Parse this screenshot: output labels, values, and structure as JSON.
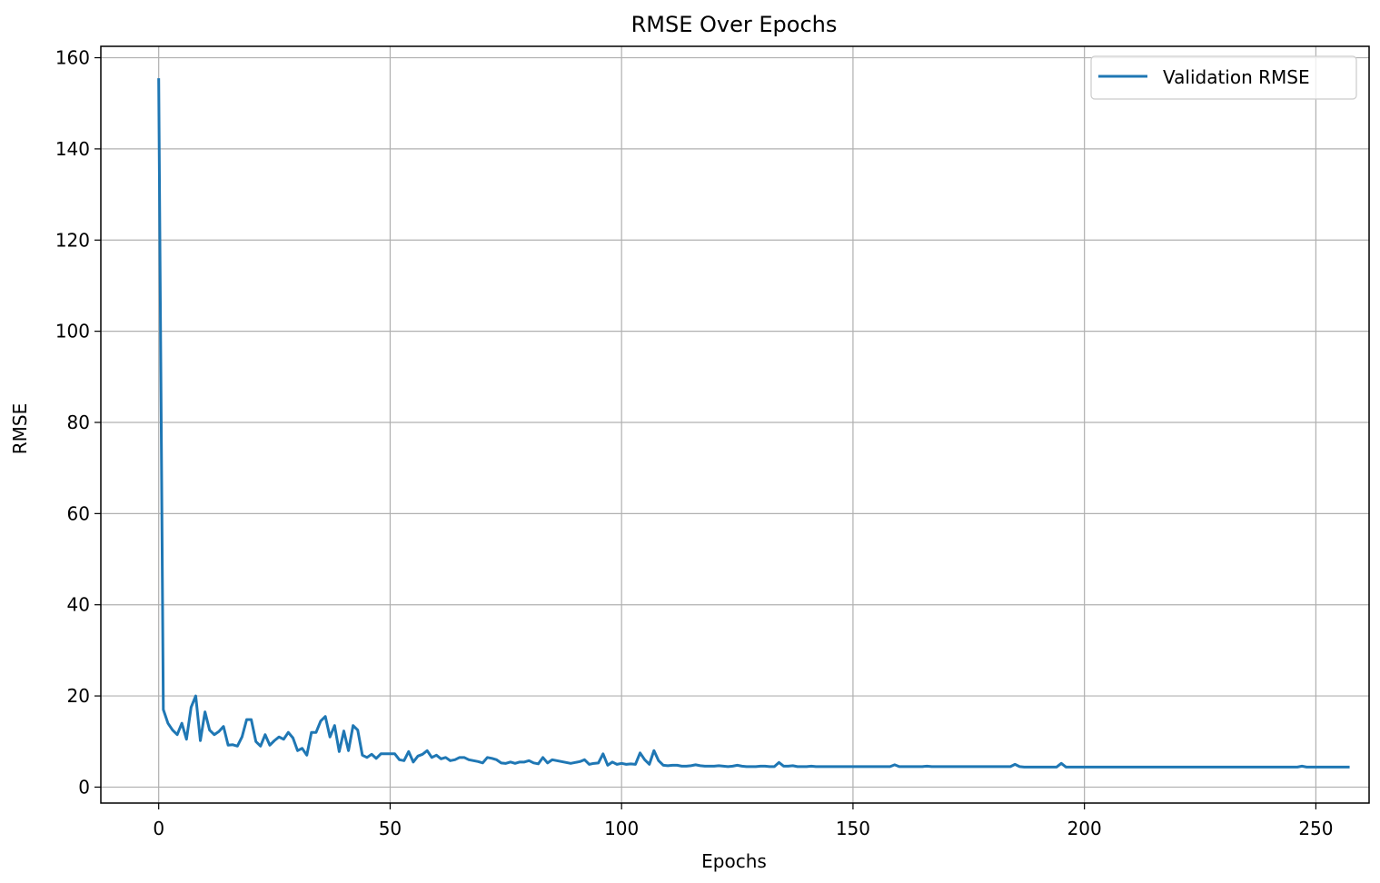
{
  "chart_data": {
    "type": "line",
    "title": "RMSE Over Epochs",
    "xlabel": "Epochs",
    "ylabel": "RMSE",
    "xlim": [
      -12.5,
      261.5
    ],
    "ylim": [
      -3.5,
      162.5
    ],
    "xticks": [
      0,
      50,
      100,
      150,
      200,
      250
    ],
    "yticks": [
      0,
      20,
      40,
      60,
      80,
      100,
      120,
      140,
      160
    ],
    "grid": true,
    "legend_position": "top-right",
    "line_color": "#1f77b4",
    "series": [
      {
        "name": "Validation RMSE",
        "x_start": 0,
        "x_step": 1,
        "values": [
          155.2,
          17.0,
          14.0,
          12.5,
          11.5,
          14.0,
          10.5,
          17.5,
          20.0,
          10.2,
          16.5,
          12.5,
          11.5,
          12.2,
          13.3,
          9.2,
          9.3,
          9.0,
          11.0,
          14.8,
          14.8,
          10.0,
          9.0,
          11.5,
          9.2,
          10.2,
          11.0,
          10.5,
          12.0,
          10.8,
          8.0,
          8.5,
          7.0,
          12.0,
          12.0,
          14.5,
          15.5,
          11.0,
          13.5,
          7.8,
          12.3,
          8.0,
          13.5,
          12.5,
          7.0,
          6.5,
          7.2,
          6.3,
          7.3,
          7.3,
          7.3,
          7.3,
          6.0,
          5.8,
          7.8,
          5.5,
          6.8,
          7.2,
          8.0,
          6.5,
          7.0,
          6.2,
          6.5,
          5.8,
          6.0,
          6.5,
          6.5,
          6.0,
          5.8,
          5.6,
          5.3,
          6.5,
          6.3,
          6.0,
          5.3,
          5.2,
          5.5,
          5.2,
          5.5,
          5.5,
          5.8,
          5.3,
          5.1,
          6.5,
          5.3,
          6.0,
          5.8,
          5.6,
          5.4,
          5.2,
          5.4,
          5.6,
          6.0,
          5.0,
          5.2,
          5.3,
          7.3,
          4.8,
          5.5,
          5.0,
          5.2,
          5.0,
          5.1,
          5.0,
          7.5,
          6.0,
          5.0,
          8.0,
          5.8,
          4.8,
          4.7,
          4.8,
          4.8,
          4.6,
          4.6,
          4.7,
          4.9,
          4.7,
          4.6,
          4.6,
          4.6,
          4.7,
          4.6,
          4.5,
          4.6,
          4.8,
          4.6,
          4.5,
          4.5,
          4.5,
          4.6,
          4.6,
          4.5,
          4.5,
          5.4,
          4.6,
          4.6,
          4.7,
          4.5,
          4.5,
          4.5,
          4.6,
          4.5,
          4.5,
          4.5,
          4.5,
          4.5,
          4.5,
          4.5,
          4.5,
          4.5,
          4.5,
          4.5,
          4.5,
          4.5,
          4.5,
          4.5,
          4.5,
          4.5,
          4.9,
          4.5,
          4.5,
          4.5,
          4.5,
          4.5,
          4.5,
          4.6,
          4.5,
          4.5,
          4.5,
          4.5,
          4.5,
          4.5,
          4.5,
          4.5,
          4.5,
          4.5,
          4.5,
          4.5,
          4.5,
          4.5,
          4.5,
          4.5,
          4.5,
          4.5,
          5.0,
          4.5,
          4.4,
          4.4,
          4.4,
          4.4,
          4.4,
          4.4,
          4.4,
          4.4,
          5.2,
          4.4,
          4.4,
          4.4,
          4.4,
          4.4,
          4.4,
          4.4,
          4.4,
          4.4,
          4.4,
          4.4,
          4.4,
          4.4,
          4.4,
          4.4,
          4.4,
          4.4,
          4.4,
          4.4,
          4.4,
          4.4,
          4.4,
          4.4,
          4.4,
          4.4,
          4.4,
          4.4,
          4.4,
          4.4,
          4.4,
          4.4,
          4.4,
          4.4,
          4.4,
          4.4,
          4.4,
          4.4,
          4.4,
          4.4,
          4.4,
          4.4,
          4.4,
          4.4,
          4.4,
          4.4,
          4.4,
          4.4,
          4.4,
          4.4,
          4.4,
          4.4,
          4.6,
          4.4,
          4.4,
          4.4,
          4.4,
          4.4,
          4.4,
          4.4,
          4.4,
          4.4,
          4.4
        ]
      }
    ]
  }
}
